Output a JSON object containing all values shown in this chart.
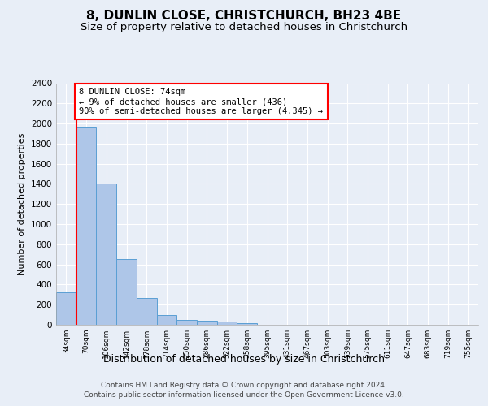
{
  "title1": "8, DUNLIN CLOSE, CHRISTCHURCH, BH23 4BE",
  "title2": "Size of property relative to detached houses in Christchurch",
  "xlabel": "Distribution of detached houses by size in Christchurch",
  "ylabel": "Number of detached properties",
  "footer1": "Contains HM Land Registry data © Crown copyright and database right 2024.",
  "footer2": "Contains public sector information licensed under the Open Government Licence v3.0.",
  "bin_labels": [
    "34sqm",
    "70sqm",
    "106sqm",
    "142sqm",
    "178sqm",
    "214sqm",
    "250sqm",
    "286sqm",
    "322sqm",
    "358sqm",
    "395sqm",
    "431sqm",
    "467sqm",
    "503sqm",
    "539sqm",
    "575sqm",
    "611sqm",
    "647sqm",
    "683sqm",
    "719sqm",
    "755sqm"
  ],
  "bar_values": [
    320,
    1960,
    1400,
    650,
    270,
    100,
    50,
    40,
    35,
    20,
    0,
    0,
    0,
    0,
    0,
    0,
    0,
    0,
    0,
    0,
    0
  ],
  "bar_color": "#aec6e8",
  "bar_edge_color": "#5a9fd4",
  "annotation_text": "8 DUNLIN CLOSE: 74sqm\n← 9% of detached houses are smaller (436)\n90% of semi-detached houses are larger (4,345) →",
  "annotation_box_color": "white",
  "annotation_box_edge": "red",
  "marker_line_color": "red",
  "ylim": [
    0,
    2400
  ],
  "yticks": [
    0,
    200,
    400,
    600,
    800,
    1000,
    1200,
    1400,
    1600,
    1800,
    2000,
    2200,
    2400
  ],
  "background_color": "#e8eef7",
  "axes_bg_color": "#e8eef7",
  "grid_color": "white",
  "title1_fontsize": 11,
  "title2_fontsize": 9.5,
  "xlabel_fontsize": 9,
  "ylabel_fontsize": 8,
  "footer_fontsize": 6.5,
  "tick_fontsize": 7.5,
  "xtick_fontsize": 6.5,
  "annot_fontsize": 7.5
}
